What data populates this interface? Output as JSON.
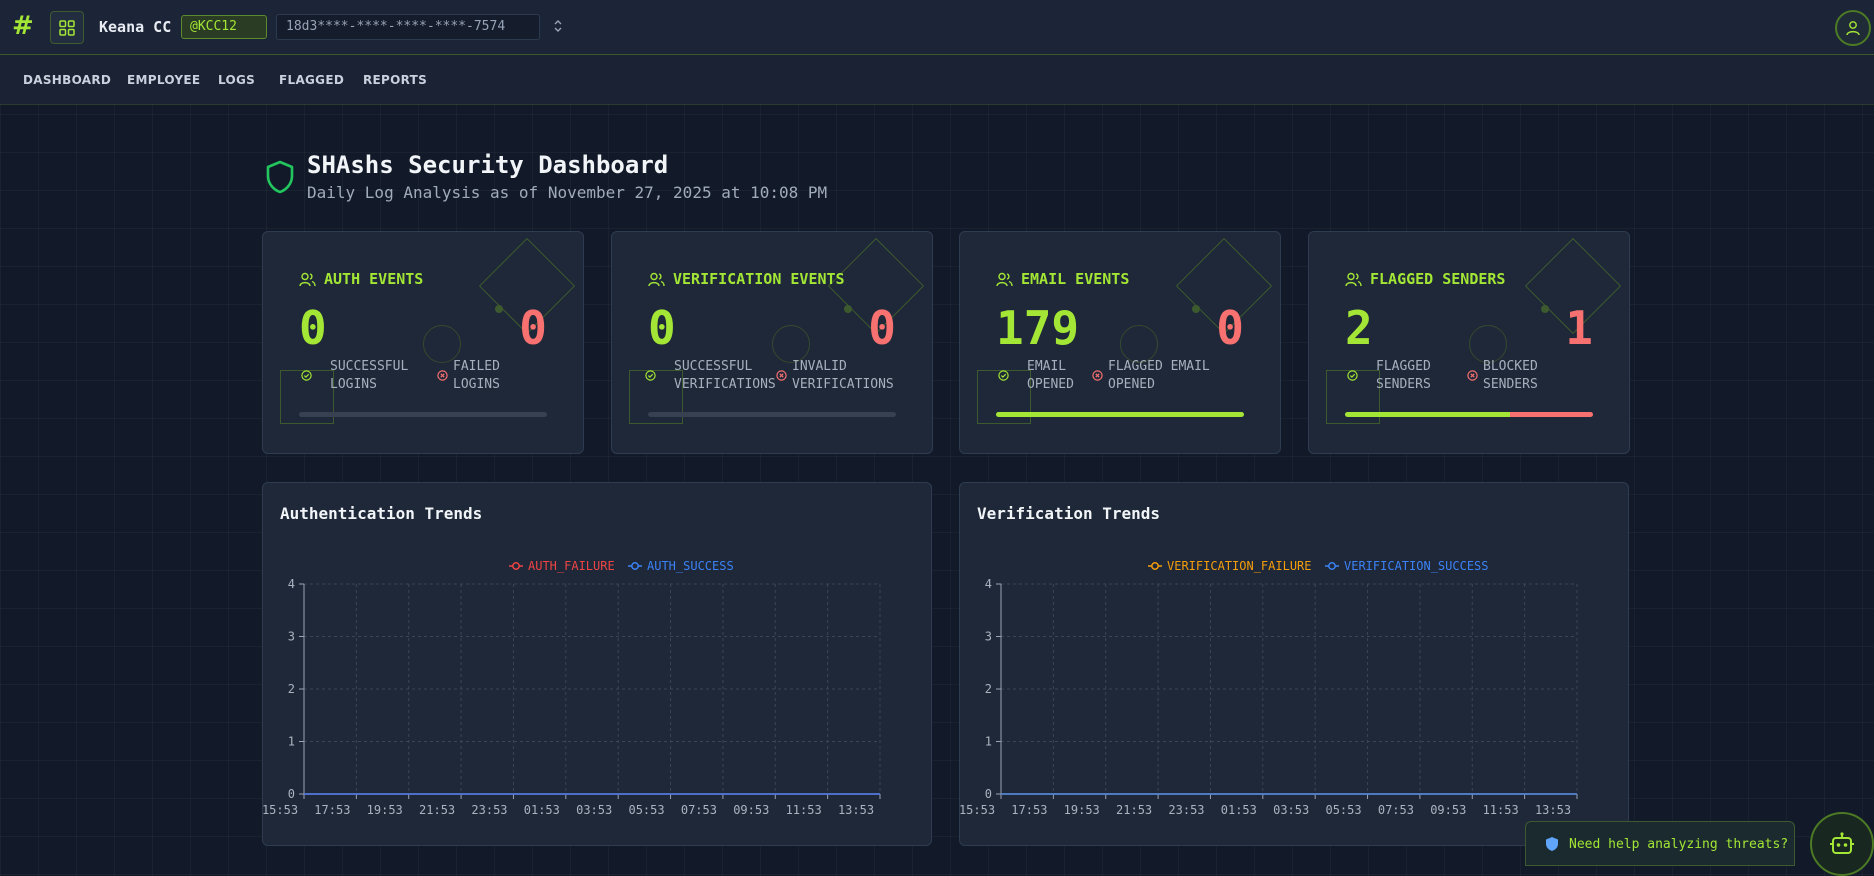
{
  "header": {
    "logo_glyph": "#",
    "org_name": "Keana CC",
    "org_tag": "@KCC12",
    "masked_key": "18d3****-****-****-****-7574"
  },
  "nav": {
    "items": [
      "DASHBOARD",
      "EMPLOYEE",
      "LOGS",
      "FLAGGED",
      "REPORTS"
    ]
  },
  "page": {
    "title": "SHAshs Security Dashboard",
    "subtitle": "Daily Log Analysis as of November 27, 2025 at 10:08 PM"
  },
  "colors": {
    "accent": "#a3e635",
    "danger": "#f87171",
    "background": "#121a29",
    "card": "#1e2838"
  },
  "cards": [
    {
      "title": "AUTH EVENTS",
      "good_value": "0",
      "bad_value": "0",
      "good_label_1": "SUCCESSFUL",
      "good_label_2": "LOGINS",
      "bad_label_1": "FAILED",
      "bad_label_2": "LOGINS",
      "good_fraction": 0,
      "bad_fraction": 0
    },
    {
      "title": "VERIFICATION EVENTS",
      "good_value": "0",
      "bad_value": "0",
      "good_label_1": "SUCCESSFUL",
      "good_label_2": "VERIFICATIONS",
      "bad_label_1": "INVALID",
      "bad_label_2": "VERIFICATIONS",
      "good_fraction": 0,
      "bad_fraction": 0
    },
    {
      "title": "EMAIL EVENTS",
      "good_value": "179",
      "bad_value": "0",
      "good_label_1": "EMAIL",
      "good_label_2": "OPENED",
      "bad_label_1": "FLAGGED EMAIL",
      "bad_label_2": "OPENED",
      "good_fraction": 1,
      "bad_fraction": 0
    },
    {
      "title": "FLAGGED SENDERS",
      "good_value": "2",
      "bad_value": "1",
      "good_label_1": "FLAGGED",
      "good_label_2": "SENDERS",
      "bad_label_1": "BLOCKED",
      "bad_label_2": "SENDERS",
      "good_fraction": 0.667,
      "bad_fraction": 0.333
    }
  ],
  "chart_data": [
    {
      "type": "line",
      "title": "Authentication Trends",
      "x": [
        "15:53",
        "17:53",
        "19:53",
        "21:53",
        "23:53",
        "01:53",
        "03:53",
        "05:53",
        "07:53",
        "09:53",
        "11:53",
        "13:53"
      ],
      "series": [
        {
          "name": "AUTH_FAILURE",
          "color": "#ef4444",
          "values": [
            0,
            0,
            0,
            0,
            0,
            0,
            0,
            0,
            0,
            0,
            0,
            0
          ]
        },
        {
          "name": "AUTH_SUCCESS",
          "color": "#3b82f6",
          "values": [
            0,
            0,
            0,
            0,
            0,
            0,
            0,
            0,
            0,
            0,
            0,
            0
          ]
        }
      ],
      "ylim": [
        0,
        4
      ],
      "yticks": [
        "0",
        "1",
        "2",
        "3",
        "4"
      ],
      "grid": true,
      "legend": "top-center"
    },
    {
      "type": "line",
      "title": "Verification Trends",
      "x": [
        "15:53",
        "17:53",
        "19:53",
        "21:53",
        "23:53",
        "01:53",
        "03:53",
        "05:53",
        "07:53",
        "09:53",
        "11:53",
        "13:53"
      ],
      "series": [
        {
          "name": "VERIFICATION_FAILURE",
          "color": "#f59e0b",
          "values": [
            0,
            0,
            0,
            0,
            0,
            0,
            0,
            0,
            0,
            0,
            0,
            0
          ]
        },
        {
          "name": "VERIFICATION_SUCCESS",
          "color": "#3b82f6",
          "values": [
            0,
            0,
            0,
            0,
            0,
            0,
            0,
            0,
            0,
            0,
            0,
            0
          ]
        }
      ],
      "ylim": [
        0,
        4
      ],
      "yticks": [
        "0",
        "1",
        "2",
        "3",
        "4"
      ],
      "grid": true,
      "legend": "top-center"
    }
  ],
  "assistant": {
    "prompt": "Need help analyzing threats?"
  }
}
